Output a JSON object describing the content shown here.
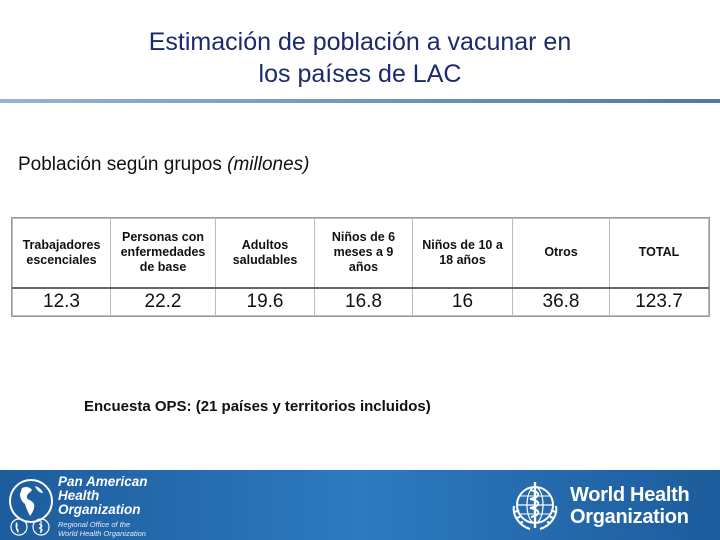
{
  "slide": {
    "title_line1": "Estimación de población a vacunar en",
    "title_line2": "los países de LAC",
    "subtitle_main": "Población según grupos ",
    "subtitle_unit": "(millones)"
  },
  "table": {
    "headers": [
      "Trabajadores\nescenciales",
      "Personas con\nenfermedades\nde base",
      "Adultos\nsaludables",
      "Niños de 6\nmeses a 9\naños",
      "Niños de 10 a\n18 años",
      "Otros",
      "TOTAL"
    ],
    "values": [
      "12.3",
      "22.2",
      "19.6",
      "16.8",
      "16",
      "36.8",
      "123.7"
    ]
  },
  "note": "Encuesta OPS: (21 países y territorios incluidos)",
  "footer": {
    "paho_line1": "Pan American",
    "paho_line2": "Health",
    "paho_line3": "Organization",
    "paho_sub1": "Regional Office of the",
    "paho_sub2": "World Health Organization",
    "who_line1": "World Health",
    "who_line2": "Organization"
  },
  "colors": {
    "title": "#1a2a6c",
    "footer": "#2d7ac0"
  },
  "icons": {
    "paho": "paho-globe-emblem-icon",
    "who": "who-emblem-icon"
  }
}
